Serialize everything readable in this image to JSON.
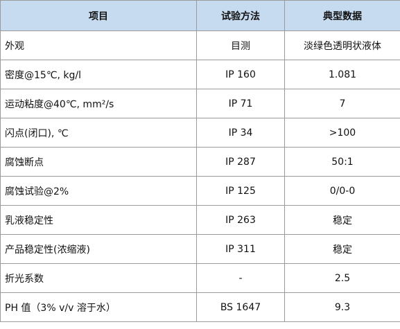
{
  "table": {
    "header": [
      "项目",
      "试验方法",
      "典型数据"
    ],
    "rows": [
      [
        "外观",
        "目测",
        "淡绿色透明状液体"
      ],
      [
        "密度@15℃, kg/l",
        "IP 160",
        "1.081"
      ],
      [
        "运动粘度@40℃, mm²/s",
        "IP 71",
        "7"
      ],
      [
        "闪点(闭口), ℃",
        "IP 34",
        ">100"
      ],
      [
        "腐蚀断点",
        "IP 287",
        "50:1"
      ],
      [
        "腐蚀试验@2%",
        "IP 125",
        "0/0-0"
      ],
      [
        "乳液稳定性",
        "IP 263",
        "稳定"
      ],
      [
        "产品稳定性(浓缩液)",
        "IP 311",
        "稳定"
      ],
      [
        "折光系数",
        "-",
        "2.5"
      ],
      [
        "PH 值（3% v/v 溶于水）",
        "BS 1647",
        "9.3"
      ]
    ]
  }
}
